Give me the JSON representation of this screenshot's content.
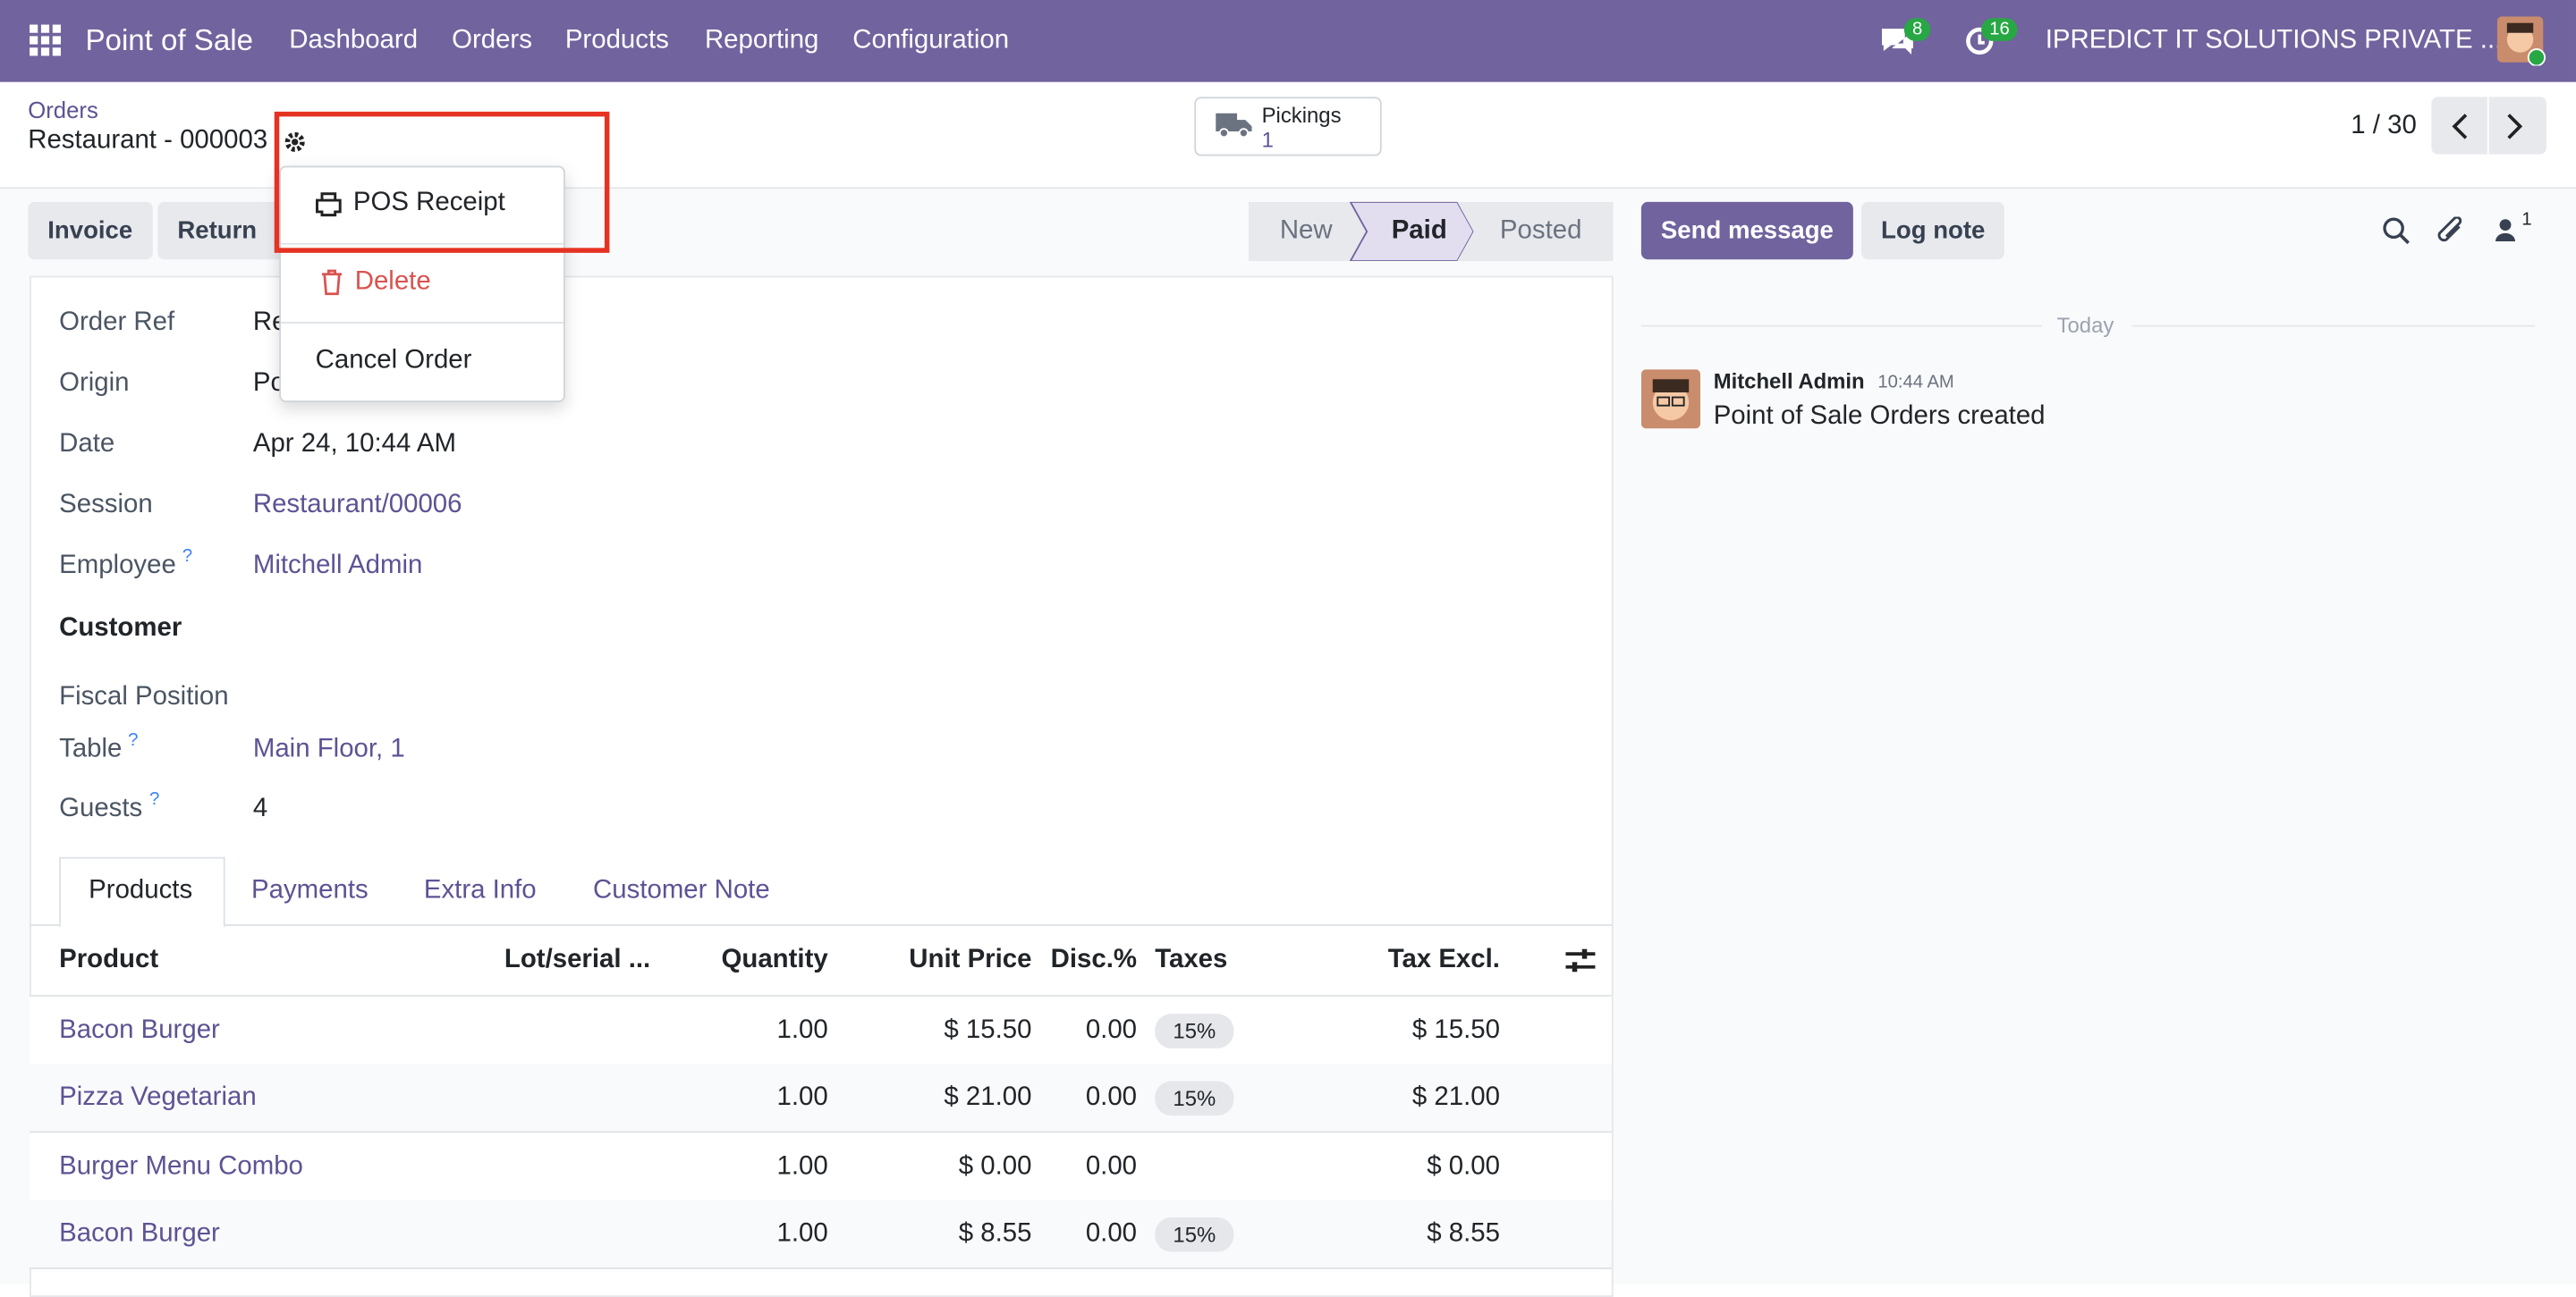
{
  "navbar": {
    "app": "Point of Sale",
    "menu": [
      "Dashboard",
      "Orders",
      "Products",
      "Reporting",
      "Configuration"
    ],
    "messages_badge": "8",
    "activities_badge": "16",
    "company": "IPREDICT IT SOLUTIONS PRIVATE ..."
  },
  "breadcrumb": {
    "parent": "Orders",
    "current": "Restaurant - 000003"
  },
  "pickings": {
    "label": "Pickings",
    "count": "1"
  },
  "pager": "1 / 30",
  "actions": [
    "Invoice",
    "Return P"
  ],
  "status": [
    "New",
    "Paid",
    "Posted"
  ],
  "dropdown": [
    "POS Receipt",
    "Delete",
    "Cancel Order"
  ],
  "fields": [
    {
      "label": "Order Ref",
      "value": "Re"
    },
    {
      "label": "Origin",
      "value": "Po"
    },
    {
      "label": "Date",
      "value": "Apr 24, 10:44 AM"
    },
    {
      "label": "Session",
      "value": "Restaurant/00006",
      "link": true
    },
    {
      "label": "Employee",
      "help": "?",
      "value": "Mitchell Admin",
      "link": true
    }
  ],
  "customer_heading": "Customer",
  "fields2": [
    {
      "label": "Fiscal Position"
    },
    {
      "label": "Table",
      "help": "?",
      "value": "Main Floor, 1",
      "link": true
    },
    {
      "label": "Guests",
      "help": "?",
      "value": "4"
    }
  ],
  "tabs": [
    "Products",
    "Payments",
    "Extra Info",
    "Customer Note"
  ],
  "table": {
    "headers": [
      "Product",
      "Lot/serial ...",
      "Quantity",
      "Unit Price",
      "Disc.%",
      "Taxes",
      "Tax Excl."
    ],
    "rows": [
      {
        "product": "Bacon Burger",
        "quantity": "1.00",
        "unit_price": "$ 15.50",
        "disc": "0.00",
        "taxes": "15%",
        "tax_excl": "$ 15.50"
      },
      {
        "product": "Pizza Vegetarian",
        "quantity": "1.00",
        "unit_price": "$ 21.00",
        "disc": "0.00",
        "taxes": "15%",
        "tax_excl": "$ 21.00"
      },
      {
        "product": "Burger Menu Combo",
        "quantity": "1.00",
        "unit_price": "$ 0.00",
        "disc": "0.00",
        "tax_excl": "$ 0.00"
      },
      {
        "product": "Bacon Burger",
        "quantity": "1.00",
        "unit_price": "$ 8.55",
        "disc": "0.00",
        "taxes": "15%",
        "tax_excl": "$ 8.55"
      }
    ]
  },
  "chatter": {
    "send": "Send message",
    "log": "Log note",
    "followers": "1",
    "date": "Today",
    "author": "Mitchell Admin",
    "time": "10:44 AM",
    "body": "Point of Sale Orders created"
  }
}
